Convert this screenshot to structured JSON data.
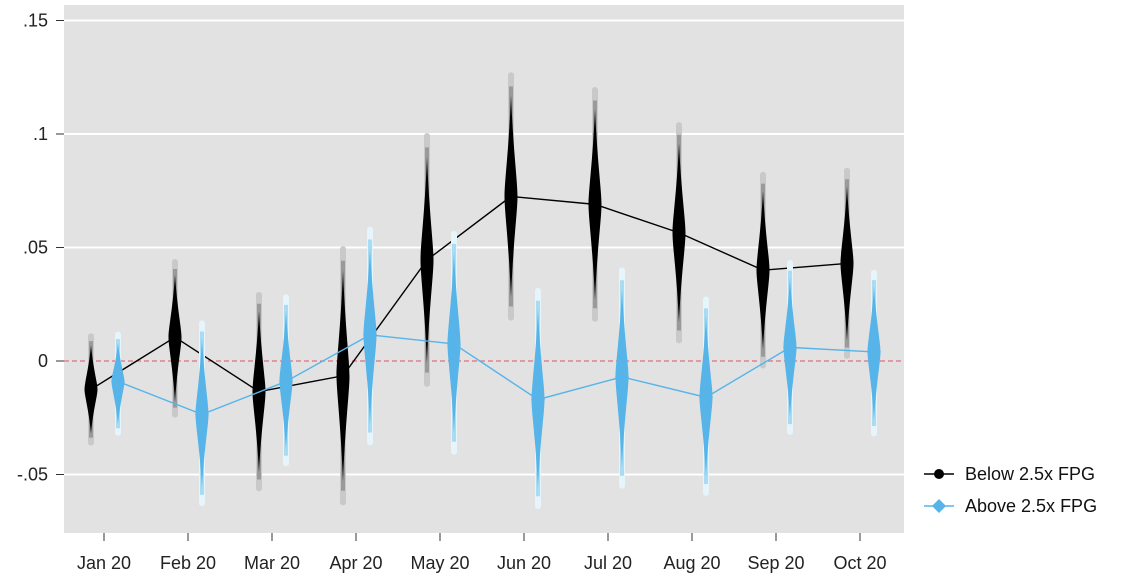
{
  "chart_data": {
    "type": "line",
    "title": "",
    "xlabel": "",
    "ylabel": "",
    "categories": [
      "Jan 20",
      "Feb 20",
      "Mar 20",
      "Apr 20",
      "May 20",
      "Jun 20",
      "Jul 20",
      "Aug 20",
      "Sep 20",
      "Oct 20"
    ],
    "ylim": [
      -0.075,
      0.152
    ],
    "yticks": [
      0.15,
      0.1,
      0.05,
      0,
      -0.05
    ],
    "ytick_labels": [
      ".15",
      ".1",
      ".05",
      "0",
      "-.05"
    ],
    "reference_line": 0,
    "grid": true,
    "legend_position": "right",
    "series": [
      {
        "name": "Below 2.5x FPG",
        "color": "#000000",
        "marker": "circle",
        "values": [
          -0.0125,
          0.0105,
          -0.0135,
          -0.0065,
          0.0445,
          0.0725,
          0.069,
          0.0565,
          0.04,
          0.043
        ],
        "ci_low": [
          -0.032,
          -0.018,
          -0.049,
          -0.053,
          -0.001,
          0.028,
          0.027,
          0.017,
          0.005,
          0.009
        ],
        "ci_high": [
          0.007,
          0.038,
          0.022,
          0.04,
          0.09,
          0.117,
          0.111,
          0.096,
          0.075,
          0.077
        ]
      },
      {
        "name": "Above 2.5x FPG",
        "color": "#56b4e9",
        "marker": "diamond",
        "values": [
          -0.009,
          -0.0235,
          -0.009,
          0.0115,
          0.0075,
          -0.017,
          -0.007,
          -0.016,
          0.006,
          0.004
        ],
        "ci_low": [
          -0.028,
          -0.056,
          -0.039,
          -0.028,
          -0.032,
          -0.056,
          -0.047,
          -0.051,
          -0.025,
          -0.026
        ],
        "ci_high": [
          0.008,
          0.01,
          0.022,
          0.05,
          0.048,
          0.023,
          0.032,
          0.02,
          0.037,
          0.033
        ]
      }
    ]
  }
}
